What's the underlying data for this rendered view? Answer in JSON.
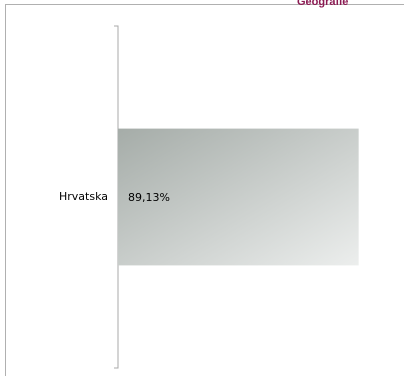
{
  "header": {
    "text": "Geografie"
  },
  "chart_data": {
    "type": "bar",
    "orientation": "horizontal",
    "categories": [
      "Hrvatska"
    ],
    "values": [
      89.13
    ],
    "data_labels": [
      "89,13%"
    ],
    "xlim": [
      0,
      100
    ],
    "title": "",
    "xlabel": "",
    "ylabel": "",
    "grid": false,
    "legend": "none",
    "colors": {
      "bar_gradient_start": "#a5aca8",
      "bar_gradient_end": "#eceeed",
      "axis": "#a8a8a8"
    }
  }
}
